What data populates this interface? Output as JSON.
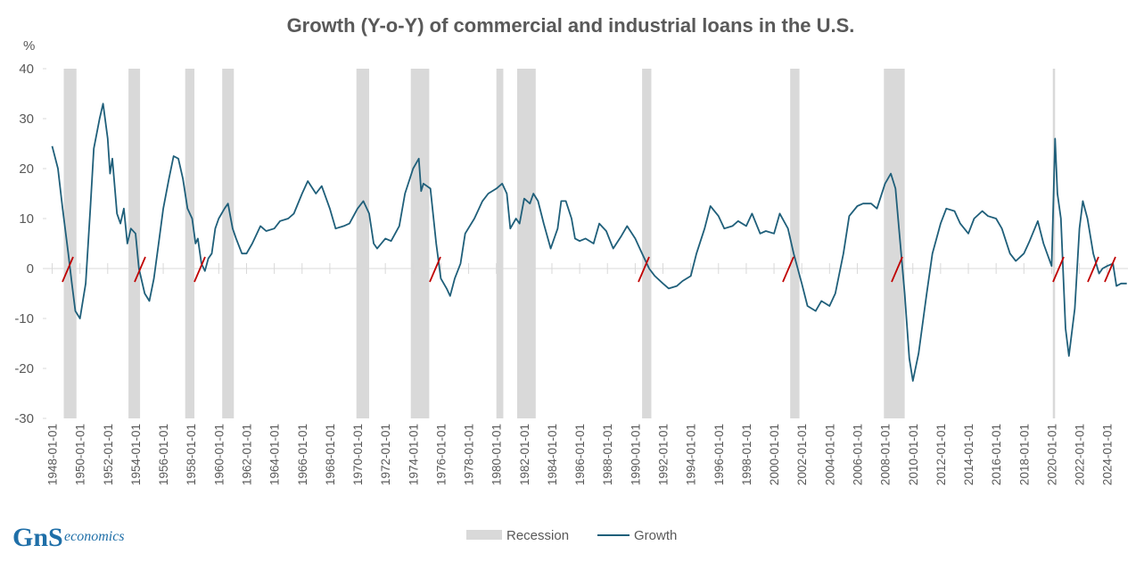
{
  "chart_data": {
    "type": "line",
    "title": "Growth (Y-o-Y) of commercial and industrial loans in the U.S.",
    "ylabel": "%",
    "logo": "GnS",
    "logo_sub": "economics",
    "ylim": [
      -30,
      40
    ],
    "yticks": [
      -30,
      -20,
      -10,
      0,
      10,
      20,
      30,
      40
    ],
    "xlim": [
      "1947-08-01",
      "2025-07-01"
    ],
    "xticks": [
      "1948-01-01",
      "1950-01-01",
      "1952-01-01",
      "1954-01-01",
      "1956-01-01",
      "1958-01-01",
      "1960-01-01",
      "1962-01-01",
      "1964-01-01",
      "1966-01-01",
      "1968-01-01",
      "1970-01-01",
      "1972-01-01",
      "1974-01-01",
      "1976-01-01",
      "1978-01-01",
      "1980-01-01",
      "1982-01-01",
      "1984-01-01",
      "1986-01-01",
      "1988-01-01",
      "1990-01-01",
      "1992-01-01",
      "1994-01-01",
      "1996-01-01",
      "1998-01-01",
      "2000-01-01",
      "2002-01-01",
      "2004-01-01",
      "2006-01-01",
      "2008-01-01",
      "2010-01-01",
      "2012-01-01",
      "2014-01-01",
      "2016-01-01",
      "2018-01-01",
      "2020-01-01",
      "2022-01-01",
      "2024-01-01"
    ],
    "recessions": {
      "name": "Recession",
      "color": "#d9d9d9",
      "periods": [
        [
          "1948-11-01",
          "1949-10-01"
        ],
        [
          "1953-07-01",
          "1954-05-01"
        ],
        [
          "1957-08-01",
          "1958-04-01"
        ],
        [
          "1960-04-01",
          "1961-02-01"
        ],
        [
          "1969-12-01",
          "1970-11-01"
        ],
        [
          "1973-11-01",
          "1975-03-01"
        ],
        [
          "1980-01-01",
          "1980-07-01"
        ],
        [
          "1981-07-01",
          "1982-11-01"
        ],
        [
          "1990-07-01",
          "1991-03-01"
        ],
        [
          "2001-03-01",
          "2001-11-01"
        ],
        [
          "2007-12-01",
          "2009-06-01"
        ],
        [
          "2020-02-01",
          "2020-04-01"
        ]
      ]
    },
    "series": [
      {
        "name": "Growth",
        "color": "#1f5f7a",
        "x": [
          "1948-01-01",
          "1948-06-01",
          "1948-10-01",
          "1949-03-01",
          "1949-06-01",
          "1949-09-01",
          "1950-01-01",
          "1950-06-01",
          "1950-10-01",
          "1951-01-01",
          "1951-06-01",
          "1951-09-01",
          "1952-01-01",
          "1952-03-01",
          "1952-05-01",
          "1952-09-01",
          "1952-12-01",
          "1953-03-01",
          "1953-06-01",
          "1953-09-01",
          "1954-01-01",
          "1954-04-01",
          "1954-09-01",
          "1955-01-01",
          "1955-05-01",
          "1955-09-01",
          "1956-01-01",
          "1956-06-01",
          "1956-10-01",
          "1957-02-01",
          "1957-06-01",
          "1957-10-01",
          "1958-02-01",
          "1958-05-01",
          "1958-07-01",
          "1958-10-01",
          "1959-01-01",
          "1959-04-01",
          "1959-07-01",
          "1959-10-01",
          "1960-01-01",
          "1960-06-01",
          "1960-09-01",
          "1961-01-01",
          "1961-04-01",
          "1961-09-01",
          "1962-01-01",
          "1962-06-01",
          "1963-01-01",
          "1963-06-01",
          "1964-01-01",
          "1964-06-01",
          "1965-01-01",
          "1965-06-01",
          "1966-01-01",
          "1966-06-01",
          "1967-01-01",
          "1967-06-01",
          "1968-01-01",
          "1968-06-01",
          "1969-01-01",
          "1969-06-01",
          "1970-01-01",
          "1970-06-01",
          "1970-11-01",
          "1971-03-01",
          "1971-06-01",
          "1972-01-01",
          "1972-06-01",
          "1973-01-01",
          "1973-06-01",
          "1974-01-01",
          "1974-06-01",
          "1974-08-01",
          "1974-10-01",
          "1975-04-01",
          "1975-09-01",
          "1976-01-01",
          "1976-06-01",
          "1976-09-01",
          "1977-01-01",
          "1977-06-01",
          "1977-10-01",
          "1978-06-01",
          "1979-01-01",
          "1979-06-01",
          "1980-01-01",
          "1980-06-01",
          "1980-10-01",
          "1981-01-01",
          "1981-06-01",
          "1981-09-01",
          "1982-01-01",
          "1982-06-01",
          "1982-09-01",
          "1983-01-01",
          "1983-06-01",
          "1983-12-01",
          "1984-06-01",
          "1984-09-01",
          "1985-01-01",
          "1985-06-01",
          "1985-09-01",
          "1986-01-01",
          "1986-06-01",
          "1987-01-01",
          "1987-06-01",
          "1987-12-01",
          "1988-06-01",
          "1989-01-01",
          "1989-06-01",
          "1990-01-01",
          "1990-06-01",
          "1991-01-01",
          "1991-06-01",
          "1992-01-01",
          "1992-06-01",
          "1993-01-01",
          "1993-06-01",
          "1994-01-01",
          "1994-06-01",
          "1995-01-01",
          "1995-06-01",
          "1996-01-01",
          "1996-06-01",
          "1997-01-01",
          "1997-06-01",
          "1998-01-01",
          "1998-06-01",
          "1999-01-01",
          "1999-06-01",
          "2000-01-01",
          "2000-06-01",
          "2001-01-01",
          "2001-06-01",
          "2002-01-01",
          "2002-06-01",
          "2003-01-01",
          "2003-06-01",
          "2004-01-01",
          "2004-06-01",
          "2005-01-01",
          "2005-06-01",
          "2006-01-01",
          "2006-06-01",
          "2007-01-01",
          "2007-06-01",
          "2008-01-01",
          "2008-06-01",
          "2008-10-01",
          "2009-01-01",
          "2009-06-01",
          "2009-10-01",
          "2010-01-01",
          "2010-06-01",
          "2011-01-01",
          "2011-06-01",
          "2012-01-01",
          "2012-06-01",
          "2013-01-01",
          "2013-06-01",
          "2014-01-01",
          "2014-06-01",
          "2015-01-01",
          "2015-06-01",
          "2016-01-01",
          "2016-06-01",
          "2017-01-01",
          "2017-06-01",
          "2018-01-01",
          "2018-06-01",
          "2019-01-01",
          "2019-06-01",
          "2020-01-01",
          "2020-04-01",
          "2020-06-01",
          "2020-09-01",
          "2021-01-01",
          "2021-04-01",
          "2021-09-01",
          "2022-01-01",
          "2022-04-01",
          "2022-08-01",
          "2023-01-01",
          "2023-06-01",
          "2023-09-01",
          "2024-01-01",
          "2024-06-01",
          "2024-09-01",
          "2025-01-01",
          "2025-06-01"
        ],
        "values": [
          24.5,
          20,
          12,
          3,
          -3,
          -8.5,
          -10,
          -3,
          12,
          24,
          30,
          33,
          26,
          19,
          22,
          11,
          9,
          12,
          5,
          8,
          7,
          0,
          -5,
          -6.5,
          -2,
          5,
          12,
          18,
          22.5,
          22,
          18,
          12,
          10,
          5,
          6,
          1,
          -0.5,
          2,
          3,
          8,
          10,
          12,
          13,
          8,
          6,
          3,
          3,
          5,
          8.5,
          7.5,
          8,
          9.5,
          10,
          11,
          15,
          17.5,
          15,
          16.5,
          12,
          8,
          8.5,
          9,
          12,
          13.5,
          11,
          5,
          4,
          6,
          5.5,
          8.5,
          15,
          20,
          22,
          15.5,
          17,
          16,
          5,
          -2,
          -4,
          -5.5,
          -2,
          1,
          7,
          10,
          13.5,
          15,
          16,
          17,
          15,
          8,
          10,
          9,
          14,
          13,
          15,
          13.5,
          9,
          4,
          8,
          13.5,
          13.5,
          10,
          6,
          5.5,
          6,
          5,
          9,
          7.5,
          4,
          6.5,
          8.5,
          6,
          3.5,
          0,
          -1.5,
          -3,
          -4,
          -3.5,
          -2.5,
          -1.5,
          3,
          8,
          12.5,
          10.5,
          8,
          8.5,
          9.5,
          8.5,
          11,
          7,
          7.5,
          7,
          11,
          8,
          3,
          -3,
          -7.5,
          -8.5,
          -6.5,
          -7.5,
          -5,
          3,
          10.5,
          12.5,
          13,
          13,
          12,
          17,
          19,
          16,
          8,
          -5,
          -18,
          -22.5,
          -17,
          -5,
          3,
          9,
          12,
          11.5,
          9,
          7,
          10,
          11.5,
          10.5,
          10,
          8,
          3,
          1.5,
          3,
          5.5,
          9.5,
          5,
          0.5,
          26,
          15,
          10,
          -12,
          -17.5,
          -8,
          8,
          13.5,
          10,
          3,
          -1,
          0,
          0.5,
          1,
          -3.5,
          -3,
          -3
        ]
      }
    ]
  }
}
